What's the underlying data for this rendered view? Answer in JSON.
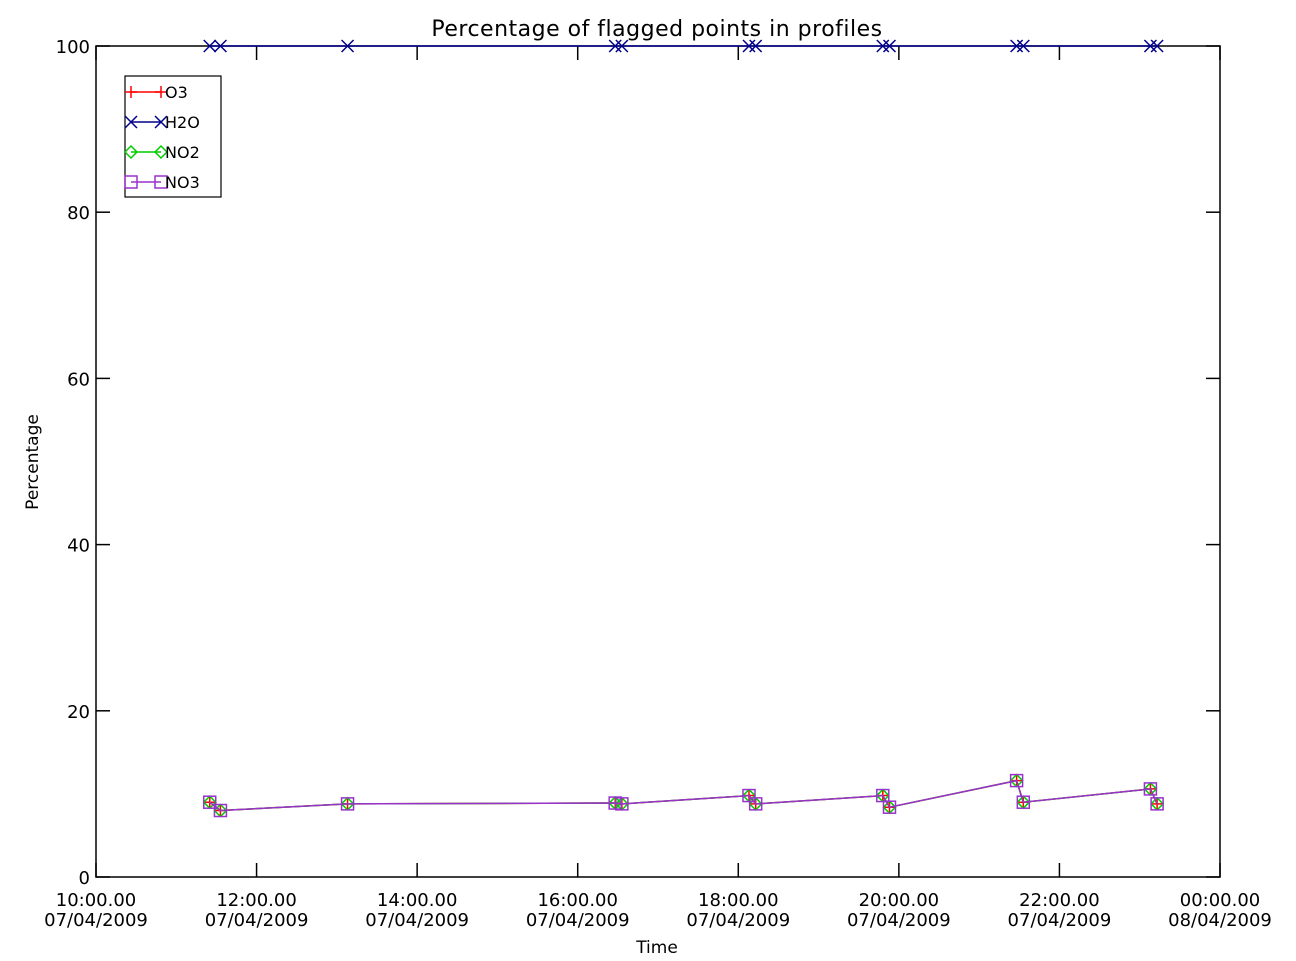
{
  "chart_data": {
    "type": "line",
    "title": "Percentage of flagged points in profiles",
    "xlabel": "Time",
    "ylabel": "Percentage",
    "xlim": [
      "2009-04-07T10:00",
      "2009-04-08T00:00"
    ],
    "ylim": [
      0,
      100
    ],
    "grid": false,
    "legend_position": "top-left",
    "y_ticks": [
      0,
      20,
      40,
      60,
      80,
      100
    ],
    "x_ticks": [
      {
        "t": "2009-04-07T10:00",
        "line1": "10:00.00",
        "line2": "07/04/2009"
      },
      {
        "t": "2009-04-07T12:00",
        "line1": "12:00.00",
        "line2": "07/04/2009"
      },
      {
        "t": "2009-04-07T14:00",
        "line1": "14:00.00",
        "line2": "07/04/2009"
      },
      {
        "t": "2009-04-07T16:00",
        "line1": "16:00.00",
        "line2": "07/04/2009"
      },
      {
        "t": "2009-04-07T18:00",
        "line1": "18:00.00",
        "line2": "07/04/2009"
      },
      {
        "t": "2009-04-07T20:00",
        "line1": "20:00.00",
        "line2": "07/04/2009"
      },
      {
        "t": "2009-04-07T22:00",
        "line1": "22:00.00",
        "line2": "07/04/2009"
      },
      {
        "t": "2009-04-08T00:00",
        "line1": "00:00.00",
        "line2": "08/04/2009"
      }
    ],
    "series": [
      {
        "name": "O3",
        "color": "#ff0000",
        "marker": "plus",
        "x": [
          "2009-04-07T11:25",
          "2009-04-07T11:33",
          "2009-04-07T13:08",
          "2009-04-07T16:28",
          "2009-04-07T16:33",
          "2009-04-07T18:08",
          "2009-04-07T18:13",
          "2009-04-07T19:48",
          "2009-04-07T19:53",
          "2009-04-07T21:28",
          "2009-04-07T21:33",
          "2009-04-07T23:08",
          "2009-04-07T23:13"
        ],
        "y": [
          9.0,
          8.0,
          8.8,
          8.9,
          8.8,
          9.8,
          8.8,
          9.8,
          8.4,
          11.6,
          9.0,
          10.6,
          8.8
        ]
      },
      {
        "name": "H2O",
        "color": "#00008b",
        "marker": "x",
        "x": [
          "2009-04-07T11:25",
          "2009-04-07T11:33",
          "2009-04-07T13:08",
          "2009-04-07T16:28",
          "2009-04-07T16:33",
          "2009-04-07T18:08",
          "2009-04-07T18:13",
          "2009-04-07T19:48",
          "2009-04-07T19:53",
          "2009-04-07T21:28",
          "2009-04-07T21:33",
          "2009-04-07T23:08",
          "2009-04-07T23:13"
        ],
        "y": [
          100,
          100,
          100,
          100,
          100,
          100,
          100,
          100,
          100,
          100,
          100,
          100,
          100
        ]
      },
      {
        "name": "NO2",
        "color": "#00cc00",
        "marker": "diamond",
        "x": [
          "2009-04-07T11:25",
          "2009-04-07T11:33",
          "2009-04-07T13:08",
          "2009-04-07T16:28",
          "2009-04-07T16:33",
          "2009-04-07T18:08",
          "2009-04-07T18:13",
          "2009-04-07T19:48",
          "2009-04-07T19:53",
          "2009-04-07T21:28",
          "2009-04-07T21:33",
          "2009-04-07T23:08",
          "2009-04-07T23:13"
        ],
        "y": [
          9.0,
          8.0,
          8.8,
          8.9,
          8.8,
          9.8,
          8.8,
          9.8,
          8.4,
          11.6,
          9.0,
          10.6,
          8.8
        ]
      },
      {
        "name": "NO3",
        "color": "#9932cc",
        "marker": "square",
        "x": [
          "2009-04-07T11:25",
          "2009-04-07T11:33",
          "2009-04-07T13:08",
          "2009-04-07T16:28",
          "2009-04-07T16:33",
          "2009-04-07T18:08",
          "2009-04-07T18:13",
          "2009-04-07T19:48",
          "2009-04-07T19:53",
          "2009-04-07T21:28",
          "2009-04-07T21:33",
          "2009-04-07T23:08",
          "2009-04-07T23:13"
        ],
        "y": [
          9.0,
          8.0,
          8.8,
          8.9,
          8.8,
          9.8,
          8.8,
          9.8,
          8.4,
          11.6,
          9.0,
          10.6,
          8.8
        ]
      }
    ]
  }
}
